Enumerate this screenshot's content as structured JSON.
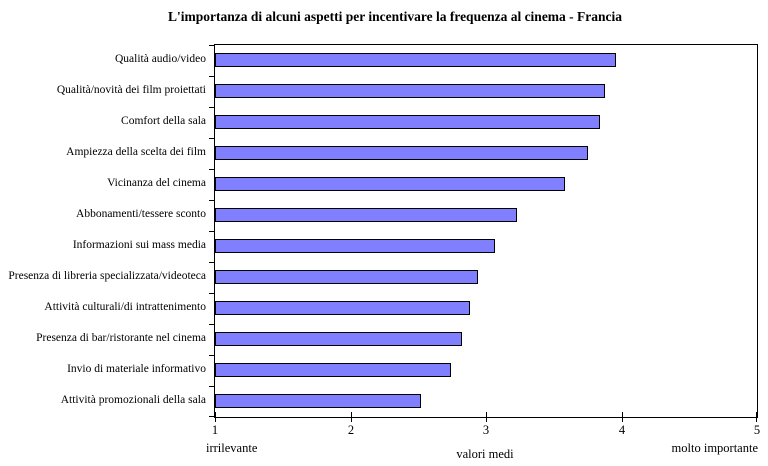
{
  "chart_data": {
    "type": "bar",
    "orientation": "horizontal",
    "title": "L'importanza di alcuni aspetti per incentivare la frequenza al cinema - Francia",
    "categories": [
      "Qualità audio/video",
      "Qualità/novità dei film proiettati",
      "Comfort della sala",
      "Ampiezza della scelta dei film",
      "Vicinanza del cinema",
      "Abbonamenti/tessere sconto",
      "Informazioni sui mass media",
      "Presenza di libreria specializzata/videoteca",
      "Attività culturali/di intrattenimento",
      "Presenza di bar/ristorante nel cinema",
      "Invio di materiale informativo",
      "Attività promozionali della sala"
    ],
    "values": [
      3.96,
      3.88,
      3.84,
      3.75,
      3.58,
      3.23,
      3.07,
      2.94,
      2.88,
      2.82,
      2.74,
      2.52
    ],
    "xlabel": "valori medi",
    "x_axis_left_label": "irrilevante",
    "x_axis_right_label": "molto importante",
    "xlim": [
      1,
      5
    ],
    "x_ticks": [
      1,
      2,
      3,
      4,
      5
    ],
    "grid": false,
    "legend": false,
    "bar_color": "#8080FF",
    "bar_border_color": "#000000",
    "plot_border_color": "#000000"
  }
}
